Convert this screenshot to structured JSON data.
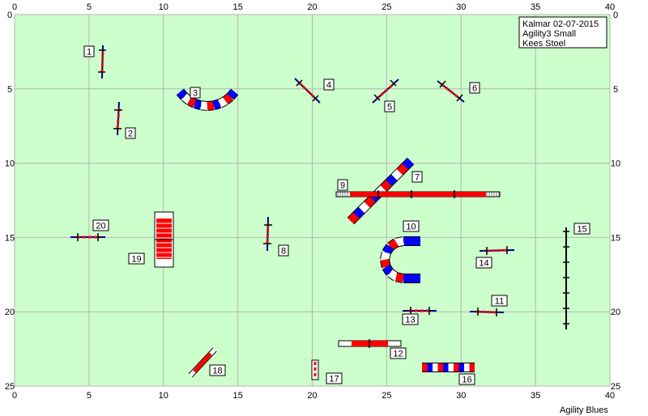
{
  "legend": {
    "line1": "Kalmar  02-07-2015",
    "line2": "Agility3 Small",
    "line3": "Kees Stoel"
  },
  "footer": "Agility Blues",
  "axis": {
    "x_ticks": [
      "0",
      "5",
      "10",
      "15",
      "20",
      "25",
      "30",
      "35",
      "40"
    ],
    "y_ticks": [
      "0",
      "5",
      "10",
      "15",
      "20",
      "25"
    ]
  },
  "colors": {
    "field": "#ccffcc",
    "grid": "#b4b4b4",
    "pole": "#ff0000",
    "stand": "#000080",
    "tunnel_blue": "#0000ff",
    "tunnel_red": "#ff0000"
  },
  "obstacles": [
    {
      "num": "1",
      "type": "jump"
    },
    {
      "num": "2",
      "type": "jump"
    },
    {
      "num": "3",
      "type": "tunnel"
    },
    {
      "num": "4",
      "type": "jump"
    },
    {
      "num": "5",
      "type": "jump"
    },
    {
      "num": "6",
      "type": "jump"
    },
    {
      "num": "7",
      "type": "tunnel"
    },
    {
      "num": "8",
      "type": "jump"
    },
    {
      "num": "9",
      "type": "dogwalk"
    },
    {
      "num": "10",
      "type": "tunnel"
    },
    {
      "num": "11",
      "type": "jump"
    },
    {
      "num": "12",
      "type": "seesaw"
    },
    {
      "num": "13",
      "type": "jump"
    },
    {
      "num": "14",
      "type": "jump"
    },
    {
      "num": "15",
      "type": "weave"
    },
    {
      "num": "16",
      "type": "tunnel"
    },
    {
      "num": "17",
      "type": "jump"
    },
    {
      "num": "18",
      "type": "tire"
    },
    {
      "num": "19",
      "type": "a-frame"
    },
    {
      "num": "20",
      "type": "jump"
    }
  ]
}
